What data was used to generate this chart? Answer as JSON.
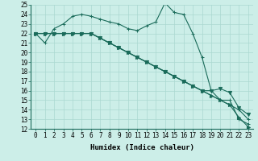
{
  "xlabel": "Humidex (Indice chaleur)",
  "bg_color": "#cceee8",
  "line_color": "#1a6b5a",
  "grid_color": "#aad8d0",
  "spine_color": "#1a6b5a",
  "xlim_min": -0.5,
  "xlim_max": 23.5,
  "ylim_min": 12,
  "ylim_max": 25,
  "xticks": [
    0,
    1,
    2,
    3,
    4,
    5,
    6,
    7,
    8,
    9,
    10,
    11,
    12,
    13,
    14,
    15,
    16,
    17,
    18,
    19,
    20,
    21,
    22,
    23
  ],
  "yticks": [
    12,
    13,
    14,
    15,
    16,
    17,
    18,
    19,
    20,
    21,
    22,
    23,
    24,
    25
  ],
  "series": [
    {
      "y": [
        22,
        21,
        22.5,
        23,
        23.8,
        24,
        23.8,
        23.5,
        23.2,
        23,
        22.5,
        22.3,
        22.8,
        23.2,
        25.2,
        24.2,
        24,
        22,
        19.5,
        16,
        15,
        15,
        13,
        12.5
      ],
      "marker": "+"
    },
    {
      "y": [
        22,
        22,
        22,
        22,
        22,
        22,
        22,
        21.5,
        21,
        20.5,
        20,
        19.5,
        19,
        18.5,
        18,
        17.5,
        17,
        16.5,
        16,
        15.5,
        15,
        14.5,
        14,
        13
      ],
      "marker": "+"
    },
    {
      "y": [
        22,
        22,
        22,
        22,
        22,
        22,
        22,
        21.5,
        21,
        20.5,
        20,
        19.5,
        19,
        18.5,
        18,
        17.5,
        17,
        16.5,
        16,
        16,
        16.2,
        15.8,
        14.2,
        13.5
      ],
      "marker": "v"
    },
    {
      "y": [
        22,
        22,
        22,
        22,
        22,
        22,
        22,
        21.5,
        21,
        20.5,
        20,
        19.5,
        19,
        18.5,
        18,
        17.5,
        17,
        16.5,
        16,
        15.5,
        15,
        14.5,
        13.2,
        12.2
      ],
      "marker": ">"
    }
  ],
  "tick_fontsize": 5.5,
  "xlabel_fontsize": 6.5
}
